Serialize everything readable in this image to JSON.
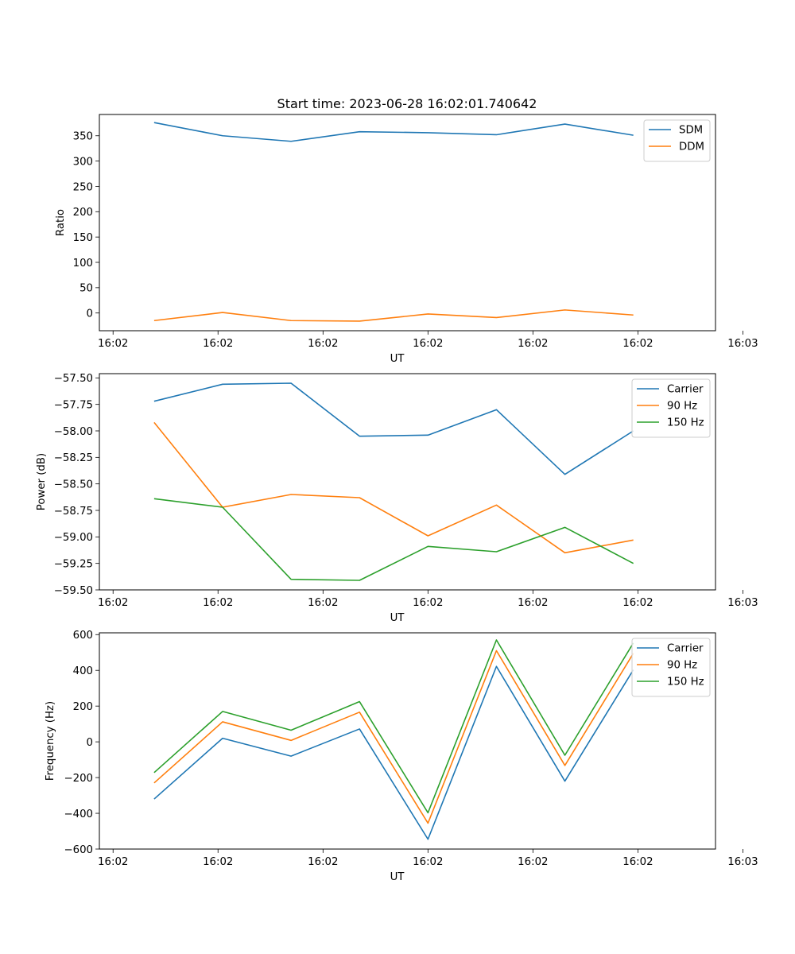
{
  "title": "Start time: 2023-06-28 16:02:01.740642",
  "x_tick_labels": [
    "16:02",
    "16:02",
    "16:02",
    "16:02",
    "16:02",
    "16:02",
    "16:03"
  ],
  "chart_data": [
    {
      "type": "line",
      "title": "Start time: 2023-06-28 16:02:01.740642",
      "xlabel": "UT",
      "ylabel": "Ratio",
      "x": [
        1,
        2,
        3,
        4,
        5,
        6,
        7,
        8
      ],
      "xlim": [
        0.2,
        9.2
      ],
      "ylim": [
        -35,
        392
      ],
      "yticks": [
        0,
        50,
        100,
        150,
        200,
        250,
        300,
        350
      ],
      "ytick_labels": [
        "0",
        "50",
        "100",
        "150",
        "200",
        "250",
        "300",
        "350"
      ],
      "legend": "top-right",
      "grid": false,
      "series": [
        {
          "name": "SDM",
          "color": "#1f77b4",
          "values": [
            376,
            350,
            339,
            358,
            356,
            352,
            373,
            351
          ]
        },
        {
          "name": "DDM",
          "color": "#ff7f0e",
          "values": [
            -15,
            1,
            -15,
            -16,
            -2,
            -9,
            6,
            -4
          ]
        }
      ]
    },
    {
      "type": "line",
      "title": "",
      "xlabel": "UT",
      "ylabel": "Power (dB)",
      "x": [
        1,
        2,
        3,
        4,
        5,
        6,
        7,
        8
      ],
      "xlim": [
        0.2,
        9.2
      ],
      "ylim": [
        -59.5,
        -57.46
      ],
      "yticks": [
        -59.5,
        -59.25,
        -59.0,
        -58.75,
        -58.5,
        -58.25,
        -58.0,
        -57.75,
        -57.5
      ],
      "ytick_labels": [
        "−59.50",
        "−59.25",
        "−59.00",
        "−58.75",
        "−58.50",
        "−58.25",
        "−58.00",
        "−57.75",
        "−57.50"
      ],
      "legend": "top-right",
      "grid": false,
      "series": [
        {
          "name": "Carrier",
          "color": "#1f77b4",
          "values": [
            -57.72,
            -57.56,
            -57.55,
            -58.05,
            -58.04,
            -57.8,
            -58.41,
            -58.0
          ]
        },
        {
          "name": "90 Hz",
          "color": "#ff7f0e",
          "values": [
            -57.92,
            -58.72,
            -58.6,
            -58.63,
            -58.99,
            -58.7,
            -59.15,
            -59.03
          ]
        },
        {
          "name": "150 Hz",
          "color": "#2ca02c",
          "values": [
            -58.64,
            -58.72,
            -59.4,
            -59.41,
            -59.09,
            -59.14,
            -58.91,
            -59.25
          ]
        }
      ]
    },
    {
      "type": "line",
      "title": "",
      "xlabel": "UT",
      "ylabel": "Frequency (Hz)",
      "x": [
        1,
        2,
        3,
        4,
        5,
        6,
        7,
        8
      ],
      "xlim": [
        0.2,
        9.2
      ],
      "ylim": [
        -600,
        610
      ],
      "yticks": [
        -600,
        -400,
        -200,
        0,
        200,
        400,
        600
      ],
      "ytick_labels": [
        "−600",
        "−400",
        "−200",
        "0",
        "200",
        "400",
        "600"
      ],
      "legend": "top-right",
      "grid": false,
      "series": [
        {
          "name": "Carrier",
          "color": "#1f77b4",
          "values": [
            -320,
            20,
            -80,
            72,
            -545,
            422,
            -220,
            403
          ]
        },
        {
          "name": "90 Hz",
          "color": "#ff7f0e",
          "values": [
            -230,
            112,
            8,
            166,
            -455,
            510,
            -132,
            495
          ]
        },
        {
          "name": "150 Hz",
          "color": "#2ca02c",
          "values": [
            -172,
            170,
            65,
            225,
            -397,
            570,
            -75,
            553
          ]
        }
      ]
    }
  ]
}
